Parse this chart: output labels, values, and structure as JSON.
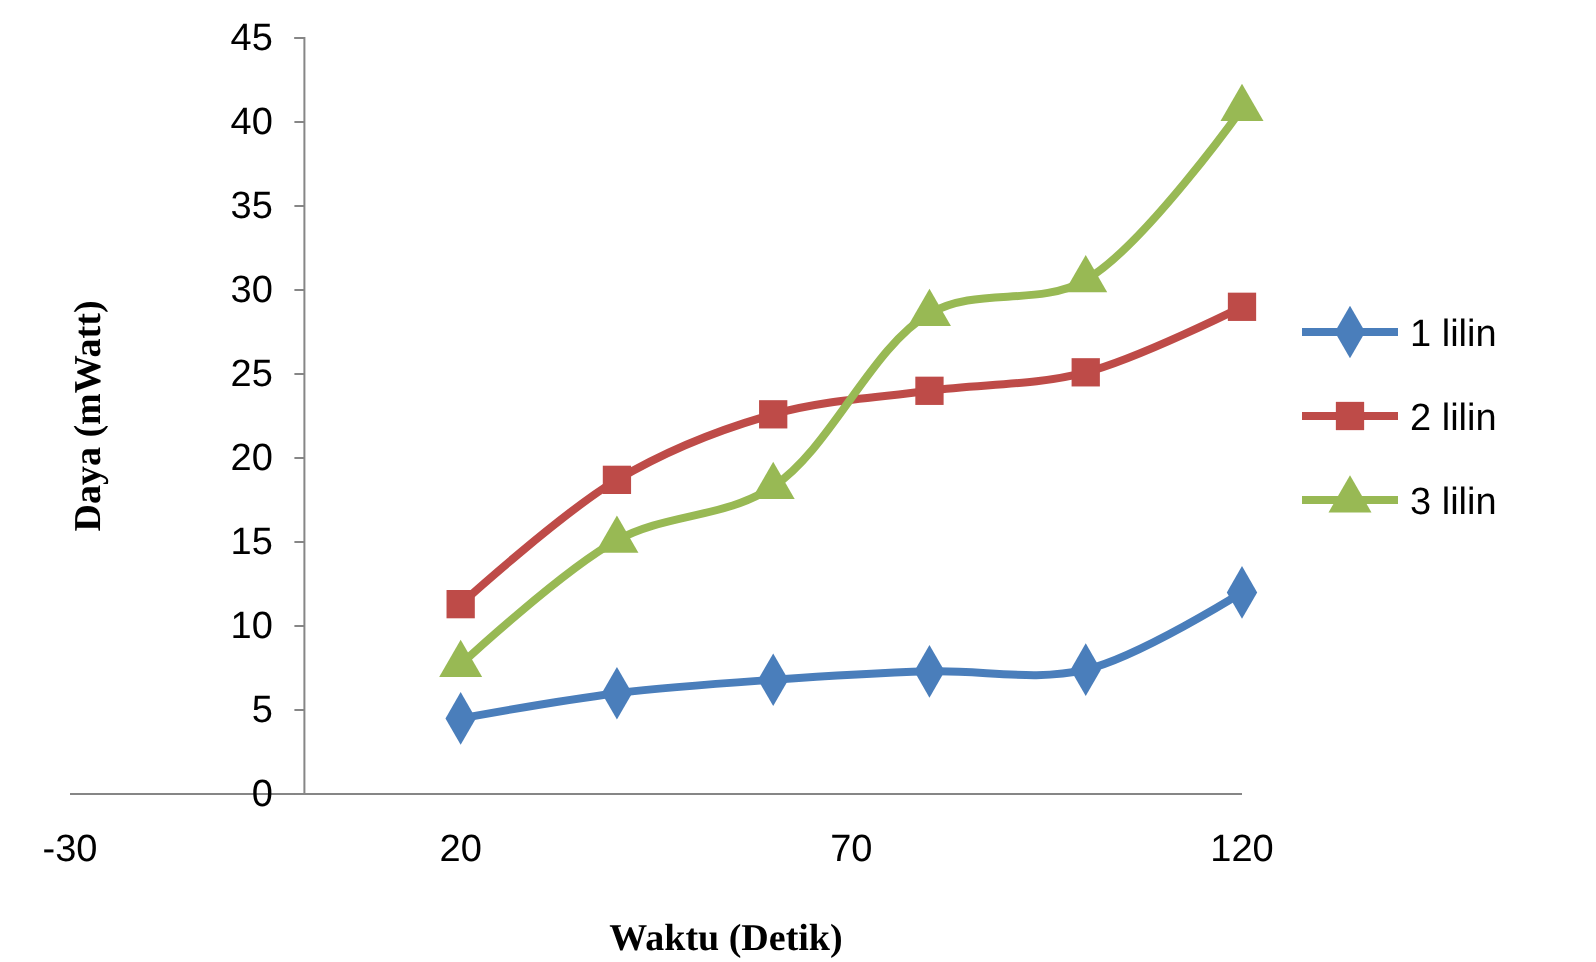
{
  "chart_data": {
    "type": "line",
    "xlabel": "Waktu (Detik)",
    "ylabel": "Daya (mWatt)",
    "xlim": [
      -30,
      120
    ],
    "xticks": [
      -30,
      20,
      70,
      120
    ],
    "ylim": [
      0,
      45
    ],
    "yticks": [
      0,
      5,
      10,
      15,
      20,
      25,
      30,
      35,
      40,
      45
    ],
    "grid": false,
    "legend": "right",
    "line_style": "solid",
    "series": [
      {
        "name": "1 lilin",
        "color": "#4a7ebb",
        "marker": "diamond",
        "x": [
          20,
          40,
          60,
          80,
          100,
          120
        ],
        "values": [
          4.5,
          6.0,
          6.8,
          7.3,
          7.4,
          12.0
        ]
      },
      {
        "name": "2 lilin",
        "color": "#be4b48",
        "marker": "square",
        "x": [
          20,
          40,
          60,
          80,
          100,
          120
        ],
        "values": [
          11.3,
          18.7,
          22.6,
          24.0,
          25.1,
          29.0
        ]
      },
      {
        "name": "3 lilin",
        "color": "#98b954",
        "marker": "triangle",
        "x": [
          20,
          40,
          60,
          80,
          100,
          120
        ],
        "values": [
          7.7,
          15.1,
          18.3,
          28.6,
          30.6,
          40.8
        ]
      }
    ]
  }
}
